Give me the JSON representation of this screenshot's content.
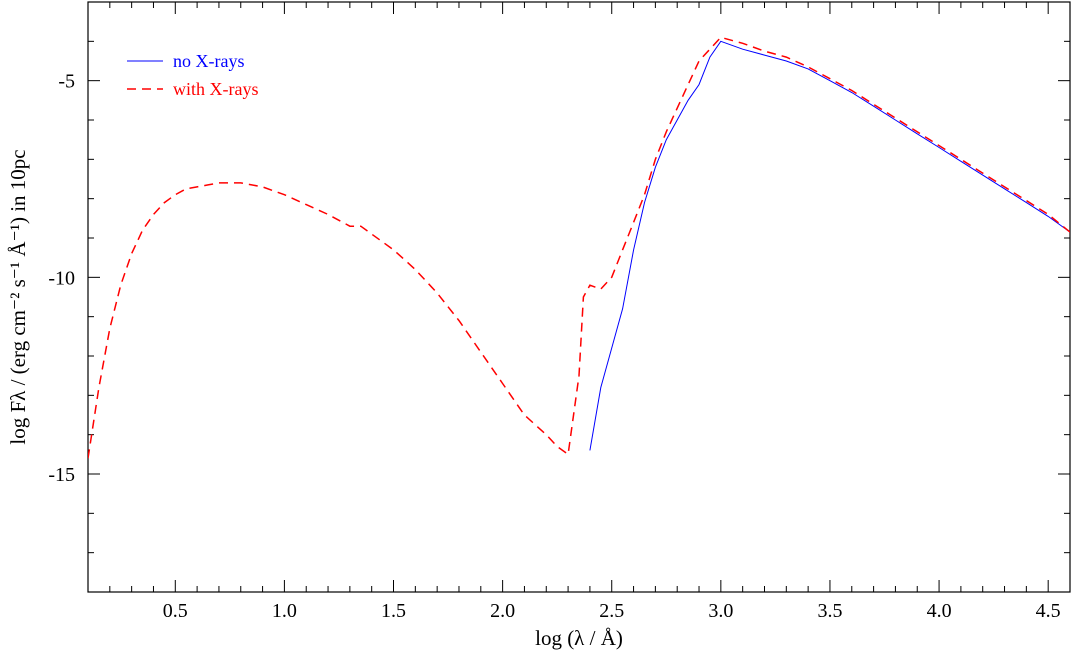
{
  "chart_data": {
    "type": "line",
    "xlabel": "log (λ / Å)",
    "ylabel": "log Fλ / (erg cm⁻² s⁻¹ Å⁻¹) in 10pc",
    "xlim": [
      0.1,
      4.6
    ],
    "ylim": [
      -18,
      -3
    ],
    "x_ticks": [
      0.5,
      1.0,
      1.5,
      2.0,
      2.5,
      3.0,
      3.5,
      4.0,
      4.5
    ],
    "x_tick_labels": [
      "0.5",
      "1.0",
      "1.5",
      "2.0",
      "2.5",
      "3.0",
      "3.5",
      "4.0",
      "4.5"
    ],
    "y_ticks": [
      -15,
      -10,
      -5
    ],
    "y_tick_labels": [
      "-15",
      "-10",
      "-5"
    ],
    "grid": false,
    "legend_position": "top-left",
    "series": [
      {
        "name": "no X-rays",
        "color": "#0000ff",
        "style": "solid",
        "x": [
          2.4,
          2.45,
          2.5,
          2.55,
          2.6,
          2.65,
          2.7,
          2.75,
          2.8,
          2.85,
          2.9,
          2.95,
          3.0,
          3.1,
          3.2,
          3.3,
          3.4,
          3.5,
          3.6,
          3.7,
          3.8,
          3.9,
          4.0,
          4.1,
          4.2,
          4.3,
          4.4,
          4.5,
          4.6
        ],
        "y": [
          -14.4,
          -12.8,
          -11.8,
          -10.8,
          -9.3,
          -8.1,
          -7.2,
          -6.5,
          -6.0,
          -5.5,
          -5.1,
          -4.4,
          -4.0,
          -4.2,
          -4.35,
          -4.5,
          -4.7,
          -5.0,
          -5.3,
          -5.65,
          -6.0,
          -6.35,
          -6.7,
          -7.05,
          -7.4,
          -7.75,
          -8.1,
          -8.45,
          -8.85
        ]
      },
      {
        "name": "with X-rays",
        "color": "#ff0000",
        "style": "dashed",
        "x": [
          0.1,
          0.15,
          0.2,
          0.25,
          0.3,
          0.35,
          0.4,
          0.45,
          0.5,
          0.55,
          0.6,
          0.65,
          0.7,
          0.75,
          0.8,
          0.85,
          0.9,
          0.95,
          1.0,
          1.1,
          1.2,
          1.3,
          1.35,
          1.4,
          1.5,
          1.6,
          1.7,
          1.8,
          1.9,
          2.0,
          2.1,
          2.2,
          2.25,
          2.3,
          2.35,
          2.37,
          2.4,
          2.45,
          2.5,
          2.55,
          2.6,
          2.65,
          2.7,
          2.75,
          2.8,
          2.85,
          2.9,
          2.95,
          3.0,
          3.1,
          3.2,
          3.3,
          3.4,
          3.5,
          3.6,
          3.7,
          3.8,
          3.9,
          4.0,
          4.1,
          4.2,
          4.3,
          4.4,
          4.5,
          4.6
        ],
        "y": [
          -14.6,
          -12.8,
          -11.3,
          -10.2,
          -9.4,
          -8.8,
          -8.4,
          -8.1,
          -7.9,
          -7.75,
          -7.7,
          -7.65,
          -7.6,
          -7.6,
          -7.6,
          -7.65,
          -7.7,
          -7.8,
          -7.9,
          -8.15,
          -8.4,
          -8.7,
          -8.7,
          -8.9,
          -9.3,
          -9.8,
          -10.4,
          -11.1,
          -11.9,
          -12.7,
          -13.5,
          -14.0,
          -14.3,
          -14.5,
          -12.5,
          -10.5,
          -10.2,
          -10.3,
          -10.0,
          -9.3,
          -8.6,
          -7.9,
          -7.0,
          -6.3,
          -5.7,
          -5.1,
          -4.5,
          -4.2,
          -3.9,
          -4.05,
          -4.25,
          -4.4,
          -4.65,
          -4.95,
          -5.25,
          -5.6,
          -5.95,
          -6.3,
          -6.65,
          -7.0,
          -7.35,
          -7.7,
          -8.05,
          -8.4,
          -8.85
        ]
      }
    ]
  }
}
